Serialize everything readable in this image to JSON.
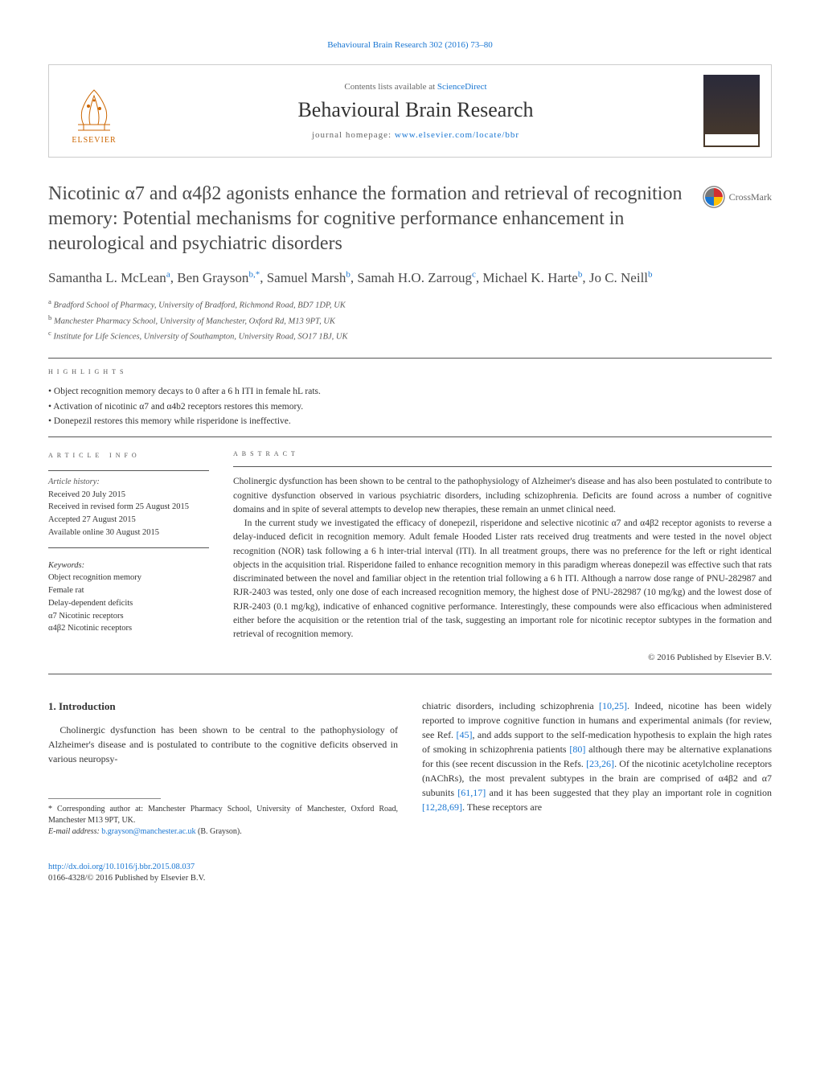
{
  "top_link_text": "Behavioural Brain Research 302 (2016) 73–80",
  "header": {
    "elsevier_label": "ELSEVIER",
    "contents_prefix": "Contents lists available at ",
    "contents_link": "ScienceDirect",
    "journal_name": "Behavioural Brain Research",
    "homepage_prefix": "journal homepage: ",
    "homepage_link": "www.elsevier.com/locate/bbr"
  },
  "crossmark_label": "CrossMark",
  "article_title": "Nicotinic α7 and α4β2 agonists enhance the formation and retrieval of recognition memory: Potential mechanisms for cognitive performance enhancement in neurological and psychiatric disorders",
  "authors_html": "Samantha L. McLean<sup>a</sup>, Ben Grayson<sup>b,*</sup>, Samuel Marsh<sup>b</sup>, Samah H.O. Zarroug<sup>c</sup>, Michael K. Harte<sup>b</sup>, Jo C. Neill<sup>b</sup>",
  "affiliations": [
    {
      "sup": "a",
      "text": "Bradford School of Pharmacy, University of Bradford, Richmond Road, BD7 1DP, UK"
    },
    {
      "sup": "b",
      "text": "Manchester Pharmacy School, University of Manchester, Oxford Rd, M13 9PT, UK"
    },
    {
      "sup": "c",
      "text": "Institute for Life Sciences, University of Southampton, University Road, SO17 1BJ, UK"
    }
  ],
  "highlights_label": "HIGHLIGHTS",
  "highlights": [
    "Object recognition memory decays to 0 after a 6 h ITI in female hL rats.",
    "Activation of nicotinic α7 and α4b2 receptors restores this memory.",
    "Donepezil restores this memory while risperidone is ineffective."
  ],
  "article_info_label": "ARTICLE INFO",
  "article_history": {
    "label": "Article history:",
    "received": "Received 20 July 2015",
    "revised": "Received in revised form 25 August 2015",
    "accepted": "Accepted 27 August 2015",
    "online": "Available online 30 August 2015"
  },
  "keywords_label": "Keywords:",
  "keywords": [
    "Object recognition memory",
    "Female rat",
    "Delay-dependent deficits",
    "α7 Nicotinic receptors",
    "α4β2 Nicotinic receptors"
  ],
  "abstract_label": "ABSTRACT",
  "abstract_paragraphs": [
    "Cholinergic dysfunction has been shown to be central to the pathophysiology of Alzheimer's disease and has also been postulated to contribute to cognitive dysfunction observed in various psychiatric disorders, including schizophrenia. Deficits are found across a number of cognitive domains and in spite of several attempts to develop new therapies, these remain an unmet clinical need.",
    "In the current study we investigated the efficacy of donepezil, risperidone and selective nicotinic α7 and α4β2 receptor agonists to reverse a delay-induced deficit in recognition memory. Adult female Hooded Lister rats received drug treatments and were tested in the novel object recognition (NOR) task following a 6 h inter-trial interval (ITI). In all treatment groups, there was no preference for the left or right identical objects in the acquisition trial. Risperidone failed to enhance recognition memory in this paradigm whereas donepezil was effective such that rats discriminated between the novel and familiar object in the retention trial following a 6 h ITI. Although a narrow dose range of PNU-282987 and RJR-2403 was tested, only one dose of each increased recognition memory, the highest dose of PNU-282987 (10 mg/kg) and the lowest dose of RJR-2403 (0.1 mg/kg), indicative of enhanced cognitive performance. Interestingly, these compounds were also efficacious when administered either before the acquisition or the retention trial of the task, suggesting an important role for nicotinic receptor subtypes in the formation and retrieval of recognition memory."
  ],
  "copyright": "© 2016 Published by Elsevier B.V.",
  "introduction": {
    "heading": "1. Introduction",
    "col1_para": "Cholinergic dysfunction has been shown to be central to the pathophysiology of Alzheimer's disease and is postulated to contribute to the cognitive deficits observed in various neuropsy-",
    "col2_para_html": "chiatric disorders, including schizophrenia <span class=\"ref-link\">[10,25]</span>. Indeed, nicotine has been widely reported to improve cognitive function in humans and experimental animals (for review, see Ref. <span class=\"ref-link\">[45]</span>, and adds support to the self-medication hypothesis to explain the high rates of smoking in schizophrenia patients <span class=\"ref-link\">[80]</span> although there may be alternative explanations for this (see recent discussion in the Refs. <span class=\"ref-link\">[23,26]</span>. Of the nicotinic acetylcholine receptors (nAChRs), the most prevalent subtypes in the brain are comprised of α4β2 and α7 subunits <span class=\"ref-link\">[61,17]</span> and it has been suggested that they play an important role in cognition <span class=\"ref-link\">[12,28,69]</span>. These receptors are"
  },
  "footnote": {
    "corr_author": "* Corresponding author at: Manchester Pharmacy School, University of Manchester, Oxford Road, Manchester M13 9PT, UK.",
    "email_label": "E-mail address: ",
    "email": "b.grayson@manchester.ac.uk",
    "email_name": " (B. Grayson)."
  },
  "bottom": {
    "doi": "http://dx.doi.org/10.1016/j.bbr.2015.08.037",
    "issn_line": "0166-4328/© 2016 Published by Elsevier B.V."
  },
  "colors": {
    "link": "#1976d2",
    "text": "#333333",
    "rule": "#555555",
    "elsevier_orange": "#cc6600"
  }
}
